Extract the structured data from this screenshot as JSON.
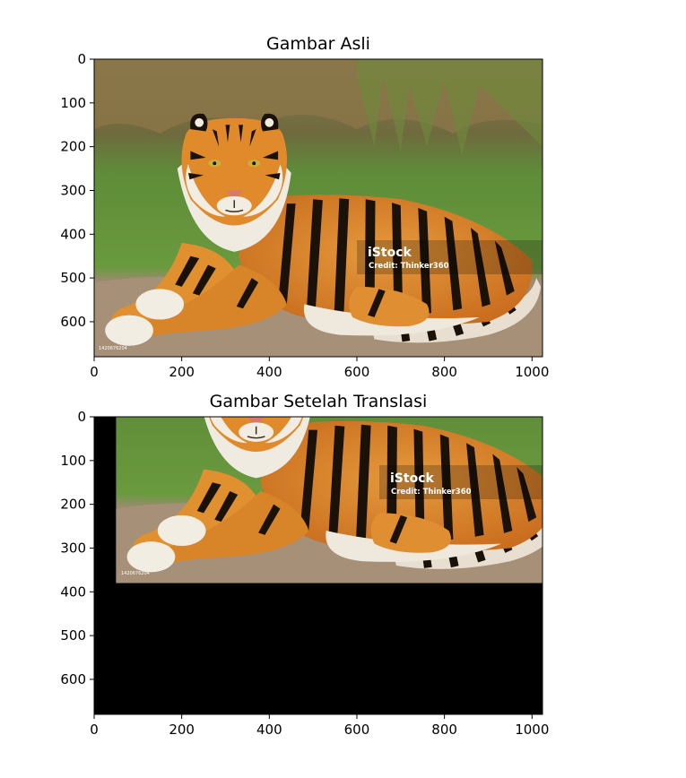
{
  "chart_data": [
    {
      "type": "image",
      "title": "Gambar Asli",
      "image_content": "tiger",
      "xlim": [
        0,
        1024
      ],
      "ylim": [
        680,
        0
      ],
      "xticks": [
        0,
        200,
        400,
        600,
        800,
        1000
      ],
      "yticks": [
        0,
        100,
        200,
        300,
        400,
        500,
        600
      ],
      "watermark": {
        "brand": "iStock",
        "credit": "Credit: Thinker360",
        "id": "1420676204"
      }
    },
    {
      "type": "image",
      "title": "Gambar Setelah Translasi",
      "image_content": "tiger shifted right and up, black fill",
      "translation": {
        "dx": 50,
        "dy": -300
      },
      "xlim": [
        0,
        1024
      ],
      "ylim": [
        680,
        0
      ],
      "xticks": [
        0,
        200,
        400,
        600,
        800,
        1000
      ],
      "yticks": [
        0,
        100,
        200,
        300,
        400,
        500,
        600
      ],
      "watermark": {
        "brand": "iStock",
        "credit": "Credit: Thinker360",
        "id": "1420676204"
      }
    }
  ],
  "colors": {
    "grass": "#5f8f3a",
    "dry_grass": "#8a7548",
    "ground": "#a68f78",
    "tiger_orange": "#d9822b",
    "stripe": "#1a1208",
    "fur_white": "#f1ece2",
    "fill": "#000000"
  }
}
